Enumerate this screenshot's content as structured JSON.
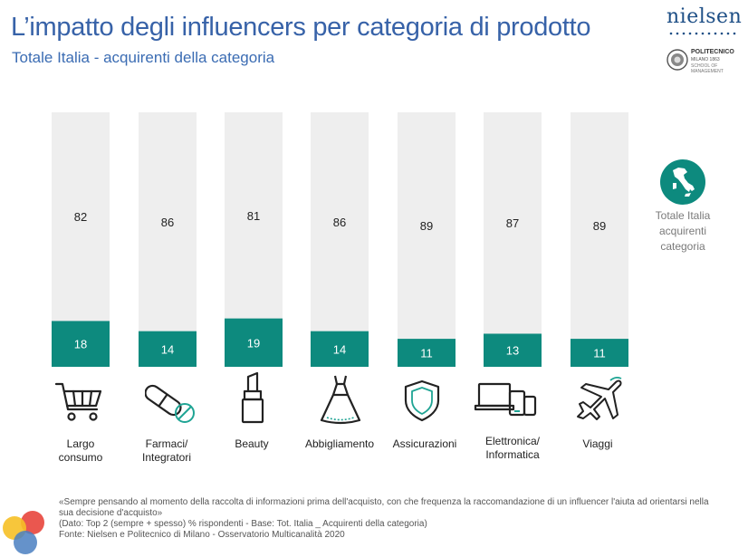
{
  "header": {
    "title": "L’impatto degli influencers per categoria di prodotto",
    "subtitle": "Totale Italia - acquirenti della categoria",
    "logo_nielsen": "nielsen",
    "logo_polimi_name": "POLITECNICO",
    "logo_polimi_sub1": "MILANO 1863",
    "logo_polimi_sub2": "SCHOOL OF MANAGEMENT"
  },
  "legend": {
    "line1": "Totale Italia",
    "line2": "acquirenti",
    "line3": "categoria",
    "icon": "italy-map-icon"
  },
  "categories": [
    {
      "line1": "Largo",
      "line2": "consumo",
      "icon": "shopping-cart-icon"
    },
    {
      "line1": "Farmaci/",
      "line2": "Integratori",
      "icon": "pill-icon"
    },
    {
      "line1": "Beauty",
      "line2": "",
      "icon": "lipstick-icon"
    },
    {
      "line1": "Abbigliamento",
      "line2": "",
      "icon": "dress-icon"
    },
    {
      "line1": "Assicurazioni",
      "line2": "",
      "icon": "shield-icon"
    },
    {
      "line1": "Elettronica/",
      "line2": "Informatica",
      "icon": "devices-icon"
    },
    {
      "line1": "Viaggi",
      "line2": "",
      "icon": "airplane-icon"
    }
  ],
  "chart_data": {
    "type": "bar",
    "stacked": true,
    "orientation": "vertical",
    "categories": [
      "Largo consumo",
      "Farmaci/ Integratori",
      "Beauty",
      "Abbigliamento",
      "Assicurazioni",
      "Elettronica/ Informatica",
      "Viaggi"
    ],
    "series": [
      {
        "values": [
          18,
          14,
          19,
          14,
          11,
          13,
          11
        ],
        "color": "#0d8a7e"
      },
      {
        "values": [
          82,
          86,
          81,
          86,
          89,
          87,
          89
        ],
        "color": "#eeeeee"
      }
    ],
    "ylim": [
      0,
      100
    ],
    "grid": false,
    "data_labels": true
  },
  "footnote": {
    "line1": "«Sempre pensando al momento della raccolta di informazioni prima dell'acquisto, con che frequenza la raccomandazione di un influencer l'aiuta ad orientarsi nella sua decisione d'acquisto»",
    "line2": "(Dato: Top 2 (sempre + spesso) % rispondenti - Base: Tot. Italia _ Acquirenti della categoria)",
    "line3": "Fonte: Nielsen e Politecnico di Milano - Osservatorio Multicanalità 2020"
  }
}
